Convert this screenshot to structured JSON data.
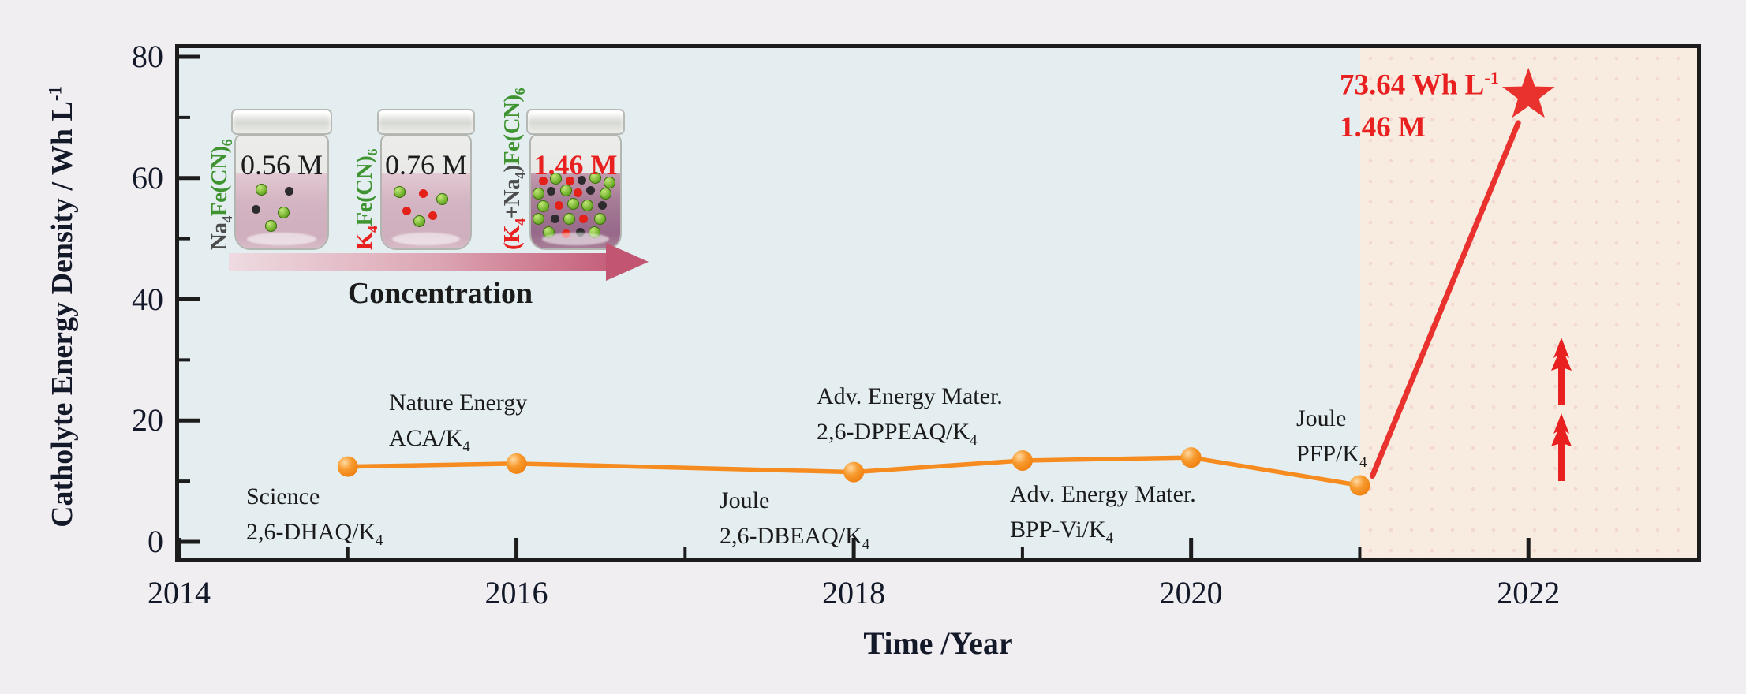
{
  "figure": {
    "bg_color": "#f0eef1",
    "plot_bg": "#e4eef1",
    "highlight_bg": "#f8ece1",
    "axis_color": "#1c1c1c",
    "accent_orange": "#f68b1f",
    "accent_red": "#e9312d",
    "red_text_color": "#e8201f"
  },
  "chart_data": {
    "type": "line",
    "title": "",
    "xlabel": "Time /Year",
    "ylabel": "Catholyte Energy Density / Wh L⁻¹",
    "ylabel_main": "Catholyte Energy Density / Wh L",
    "ylabel_sup": "-1",
    "xlim": [
      2014,
      2023
    ],
    "ylim": [
      -2.7,
      81.5
    ],
    "x_ticks": [
      "2014",
      "2016",
      "2018",
      "2020",
      "2022"
    ],
    "x_tick_values": [
      2014,
      2016,
      2018,
      2020,
      2022
    ],
    "x_minor_ticks": [
      2015,
      2017,
      2019,
      2021
    ],
    "y_ticks": [
      "0",
      "20",
      "40",
      "60",
      "80"
    ],
    "y_tick_values": [
      0,
      20,
      40,
      60,
      80
    ],
    "y_minor_ticks": [
      10,
      30,
      50,
      70
    ],
    "grid": false,
    "legend": false,
    "highlight_region": {
      "x_start": 2021,
      "x_end": 2023
    },
    "series": [
      {
        "name": "reported-flow-battery-catholytes",
        "marker": "circle",
        "color": "#f68b1f",
        "x": [
          2015,
          2016,
          2018,
          2019,
          2020,
          2021
        ],
        "values": [
          12.4,
          12.9,
          11.5,
          13.4,
          13.9,
          9.3
        ]
      },
      {
        "name": "this-work",
        "marker": "star",
        "color": "#e9312d",
        "x": [
          2022
        ],
        "values": [
          73.64
        ]
      }
    ],
    "connector": {
      "from": {
        "x": 2021,
        "value": 9.3
      },
      "to": {
        "x": 2022,
        "value": 73.64
      },
      "color": "#e9312d"
    },
    "annotations": [
      {
        "year": 2015,
        "journal": "Science",
        "compound": "2,6-DHAQ/K",
        "compound_sub": "4",
        "placement": "below-left"
      },
      {
        "year": 2016,
        "journal": "Nature Energy",
        "compound": "ACA/K",
        "compound_sub": "4",
        "placement": "above"
      },
      {
        "year": 2018,
        "journal": "Joule",
        "compound": "2,6-DBEAQ/K",
        "compound_sub": "4",
        "placement": "below"
      },
      {
        "year": 2019,
        "journal": "Adv. Energy Mater.",
        "compound": "2,6-DPPEAQ/K",
        "compound_sub": "4",
        "placement": "above"
      },
      {
        "year": 2020,
        "journal": "Adv. Energy Mater.",
        "compound": "BPP-Vi/K",
        "compound_sub": "4",
        "placement": "below"
      },
      {
        "year": 2021,
        "journal": "Joule",
        "compound": "PFP/K",
        "compound_sub": "4",
        "placement": "above"
      }
    ],
    "star_label": {
      "line1_main": "73.64 Wh L",
      "line1_sup": "-1",
      "line2": "1.46 M"
    },
    "up_arrows_count": 2
  },
  "inset": {
    "arrow_label": "Concentration",
    "dot_colors": {
      "g": "#6fae2a",
      "r": "#e32119",
      "k": "#2e2b2e"
    },
    "vials": [
      {
        "molarity": "0.56 M",
        "label": {
          "a": "Na",
          "a_sub": "4",
          "b": "Fe(CN)",
          "b_sub": "6"
        },
        "dots": [
          [
            "g",
            0.28,
            0.22
          ],
          [
            "k",
            0.58,
            0.24
          ],
          [
            "k",
            0.22,
            0.48
          ],
          [
            "g",
            0.52,
            0.52
          ],
          [
            "g",
            0.38,
            0.7
          ]
        ]
      },
      {
        "molarity": "0.76 M",
        "label": {
          "a": "K",
          "a_sub": "4",
          "b": "Fe(CN)",
          "b_sub": "6"
        },
        "dots": [
          [
            "g",
            0.2,
            0.25
          ],
          [
            "r",
            0.47,
            0.27
          ],
          [
            "g",
            0.68,
            0.34
          ],
          [
            "r",
            0.28,
            0.5
          ],
          [
            "g",
            0.42,
            0.64
          ],
          [
            "r",
            0.58,
            0.56
          ]
        ]
      },
      {
        "molarity": "1.46 M",
        "label": {
          "a": "(K",
          "a_sub": "4",
          "b": "+Na",
          "b_sub": "4",
          "b2": ")",
          "c": "Fe(CN)",
          "c_sub": "6"
        },
        "dots": [
          [
            "r",
            0.14,
            0.1
          ],
          [
            "g",
            0.28,
            0.07
          ],
          [
            "r",
            0.44,
            0.1
          ],
          [
            "k",
            0.57,
            0.09
          ],
          [
            "g",
            0.72,
            0.06
          ],
          [
            "g",
            0.88,
            0.12
          ],
          [
            "g",
            0.08,
            0.27
          ],
          [
            "k",
            0.23,
            0.24
          ],
          [
            "g",
            0.39,
            0.23
          ],
          [
            "r",
            0.53,
            0.26
          ],
          [
            "k",
            0.67,
            0.23
          ],
          [
            "g",
            0.84,
            0.27
          ],
          [
            "g",
            0.14,
            0.44
          ],
          [
            "r",
            0.31,
            0.43
          ],
          [
            "g",
            0.47,
            0.41
          ],
          [
            "g",
            0.63,
            0.43
          ],
          [
            "k",
            0.8,
            0.43
          ],
          [
            "g",
            0.08,
            0.61
          ],
          [
            "k",
            0.27,
            0.61
          ],
          [
            "g",
            0.43,
            0.61
          ],
          [
            "r",
            0.59,
            0.61
          ],
          [
            "g",
            0.77,
            0.61
          ],
          [
            "g",
            0.2,
            0.78
          ],
          [
            "r",
            0.39,
            0.8
          ],
          [
            "k",
            0.55,
            0.78
          ],
          [
            "g",
            0.71,
            0.78
          ]
        ]
      }
    ]
  }
}
